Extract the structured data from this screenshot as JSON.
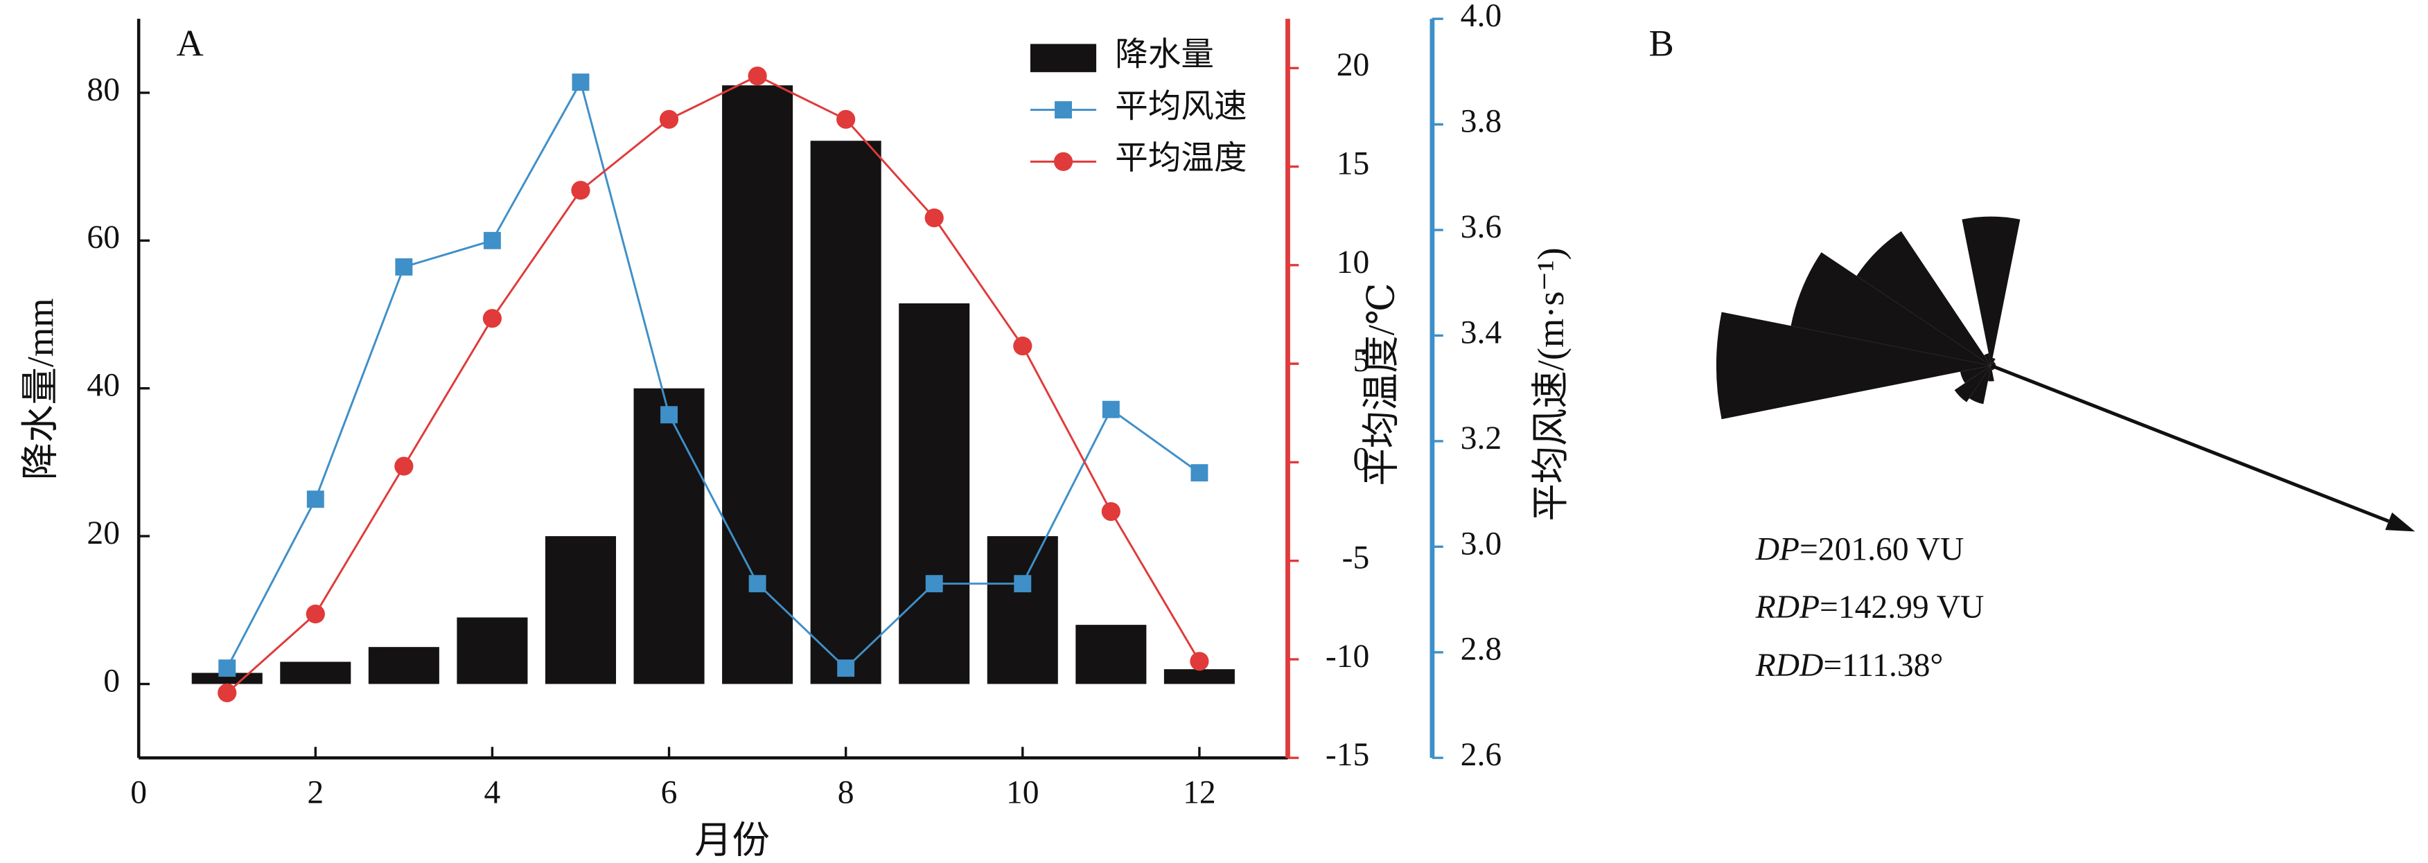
{
  "chart_data": [
    {
      "type": "bar",
      "panel_label": "A",
      "x": [
        1,
        2,
        3,
        4,
        5,
        6,
        7,
        8,
        9,
        10,
        11,
        12
      ],
      "xlim": [
        0,
        13
      ],
      "xticks": [
        0,
        2,
        4,
        6,
        8,
        10,
        12
      ],
      "xlabel": "月份",
      "ylabel": "降水量/mm",
      "ylim": [
        -10,
        90
      ],
      "yticks": [
        0,
        20,
        40,
        60,
        80
      ],
      "y2label": "平均温度/℃",
      "y2lim": [
        -15,
        22.5
      ],
      "y2ticks": [
        -15,
        -10,
        -5,
        0,
        5,
        10,
        15,
        20
      ],
      "y2color": "#e03a3a",
      "y3label": "平均风速/(m·s⁻¹)",
      "y3lim": [
        2.6,
        4.0
      ],
      "y3ticks": [
        2.6,
        2.8,
        {
          "value": 3.0,
          "label": "3.0"
        },
        3.2,
        3.4,
        3.6,
        3.8,
        {
          "value": 4.0,
          "label": "4.0"
        }
      ],
      "y3color": "#3f8fc8",
      "series": [
        {
          "name": "降水量",
          "type": "bar",
          "color": "#141212",
          "values": [
            1.5,
            3,
            5,
            9,
            20,
            40,
            81,
            73.5,
            51.5,
            20,
            8,
            2
          ]
        },
        {
          "name": "平均风速",
          "type": "line",
          "axis": "y3",
          "marker": "square",
          "color": "#3f8fc8",
          "values": [
            2.77,
            3.09,
            3.53,
            3.58,
            3.88,
            3.25,
            2.93,
            2.77,
            2.93,
            2.93,
            3.26,
            3.14
          ]
        },
        {
          "name": "平均温度",
          "type": "line",
          "axis": "y2",
          "marker": "circle",
          "color": "#e03a3a",
          "values": [
            -11.7,
            -7.7,
            -0.2,
            7.3,
            13.8,
            17.4,
            19.6,
            17.4,
            12.4,
            5.9,
            -2.5,
            -10.1
          ]
        }
      ]
    },
    {
      "type": "rose",
      "panel_label": "B",
      "color": "#141212",
      "values": [
        95,
        5,
        3,
        3,
        3,
        3,
        3,
        3,
        10,
        25,
        28,
        20,
        175,
        130,
        103,
        8
      ],
      "rdd": 111.38,
      "stats": [
        [
          "DP",
          "=201.60 VU"
        ],
        [
          "RDP",
          "=142.99 VU"
        ],
        [
          "RDD",
          "=111.38°"
        ]
      ]
    }
  ]
}
